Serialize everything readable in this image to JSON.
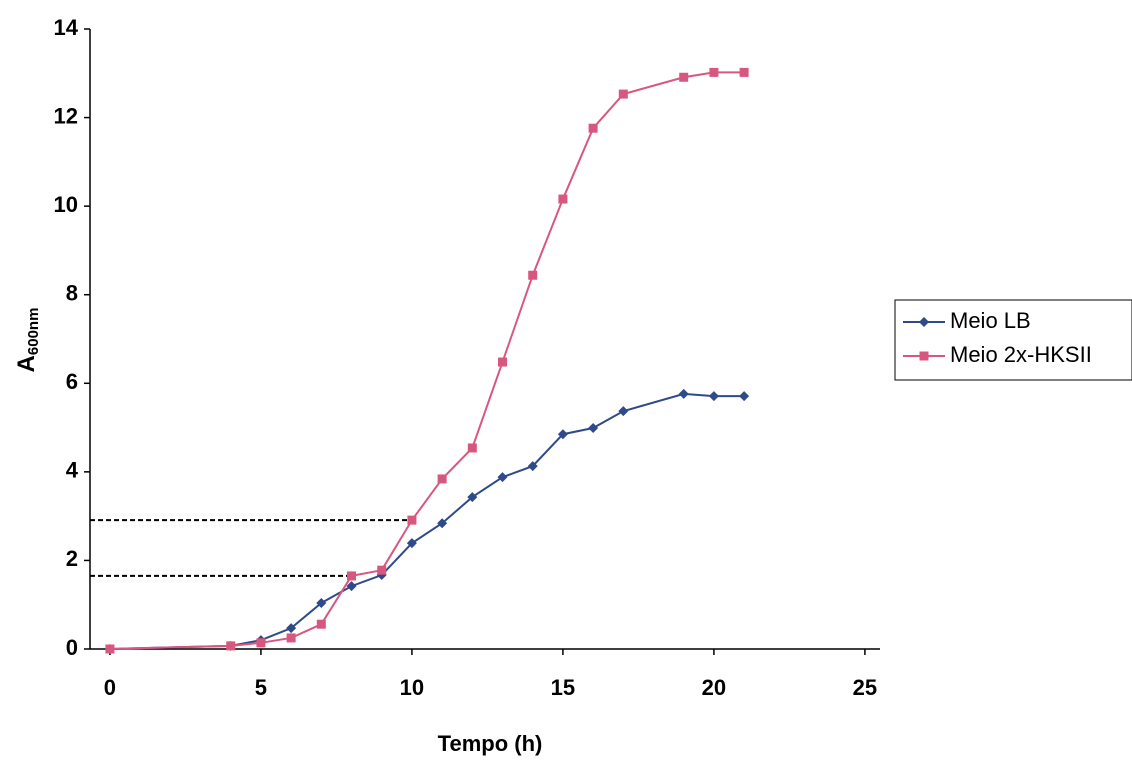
{
  "chart_data": {
    "type": "line",
    "x_label": "Tempo (h)",
    "y_label": "A",
    "y_label_sub": "600nm",
    "xlim": [
      -0.66,
      25.5
    ],
    "xticks": [
      0,
      5,
      10,
      15,
      20,
      25
    ],
    "ylim": [
      0,
      14
    ],
    "yticks": [
      0,
      2,
      4,
      6,
      8,
      10,
      12,
      14
    ],
    "series": [
      {
        "name": "Meio LB",
        "color": "#2e4a8a",
        "marker": "diamond",
        "x": [
          0,
          4,
          5,
          6,
          7,
          8,
          9,
          10,
          11,
          12,
          13,
          14,
          15,
          16,
          17,
          19,
          20,
          21
        ],
        "values": [
          0,
          0.07,
          0.2,
          0.47,
          1.04,
          1.42,
          1.67,
          2.39,
          2.84,
          3.43,
          3.88,
          4.13,
          4.85,
          4.99,
          5.37,
          5.76,
          5.71,
          5.71
        ]
      },
      {
        "name": "Meio 2x-HKSII",
        "color": "#d8577f",
        "marker": "square",
        "x": [
          0,
          4,
          5,
          6,
          7,
          8,
          9,
          10,
          11,
          12,
          13,
          14,
          15,
          16,
          17,
          19,
          20,
          21
        ],
        "values": [
          0,
          0.07,
          0.14,
          0.25,
          0.56,
          1.65,
          1.78,
          2.91,
          3.84,
          4.54,
          6.48,
          8.44,
          10.16,
          11.76,
          12.53,
          12.91,
          13.02,
          13.02
        ]
      }
    ],
    "reference_lines": [
      {
        "y": 2.91,
        "x_end": 10
      },
      {
        "y": 1.65,
        "x_end": 8
      }
    ],
    "legend": "right"
  }
}
